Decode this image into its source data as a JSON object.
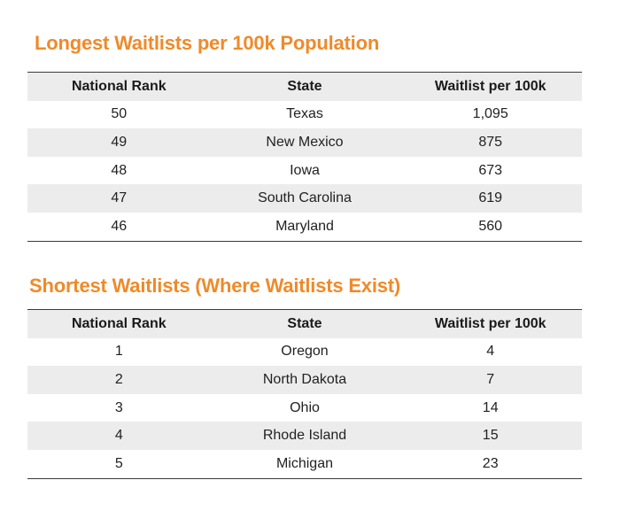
{
  "longest": {
    "title": "Longest Waitlists per 100k Population",
    "headers": [
      "National Rank",
      "State",
      "Waitlist per 100k"
    ],
    "rows": [
      {
        "rank": "50",
        "state": "Texas",
        "waitlist": "1,095"
      },
      {
        "rank": "49",
        "state": "New Mexico",
        "waitlist": "875"
      },
      {
        "rank": "48",
        "state": "Iowa",
        "waitlist": "673"
      },
      {
        "rank": "47",
        "state": "South Carolina",
        "waitlist": "619"
      },
      {
        "rank": "46",
        "state": "Maryland",
        "waitlist": "560"
      }
    ]
  },
  "shortest": {
    "title": "Shortest Waitlists (Where Waitlists Exist)",
    "headers": [
      "National Rank",
      "State",
      "Waitlist per 100k"
    ],
    "rows": [
      {
        "rank": "1",
        "state": "Oregon",
        "waitlist": "4"
      },
      {
        "rank": "2",
        "state": "North Dakota",
        "waitlist": "7"
      },
      {
        "rank": "3",
        "state": "Ohio",
        "waitlist": "14"
      },
      {
        "rank": "4",
        "state": "Rhode Island",
        "waitlist": "15"
      },
      {
        "rank": "5",
        "state": "Michigan",
        "waitlist": "23"
      }
    ]
  },
  "colors": {
    "title": "#ef8a2a",
    "row_shade": "#ececec",
    "rule": "#3a3a3a"
  }
}
